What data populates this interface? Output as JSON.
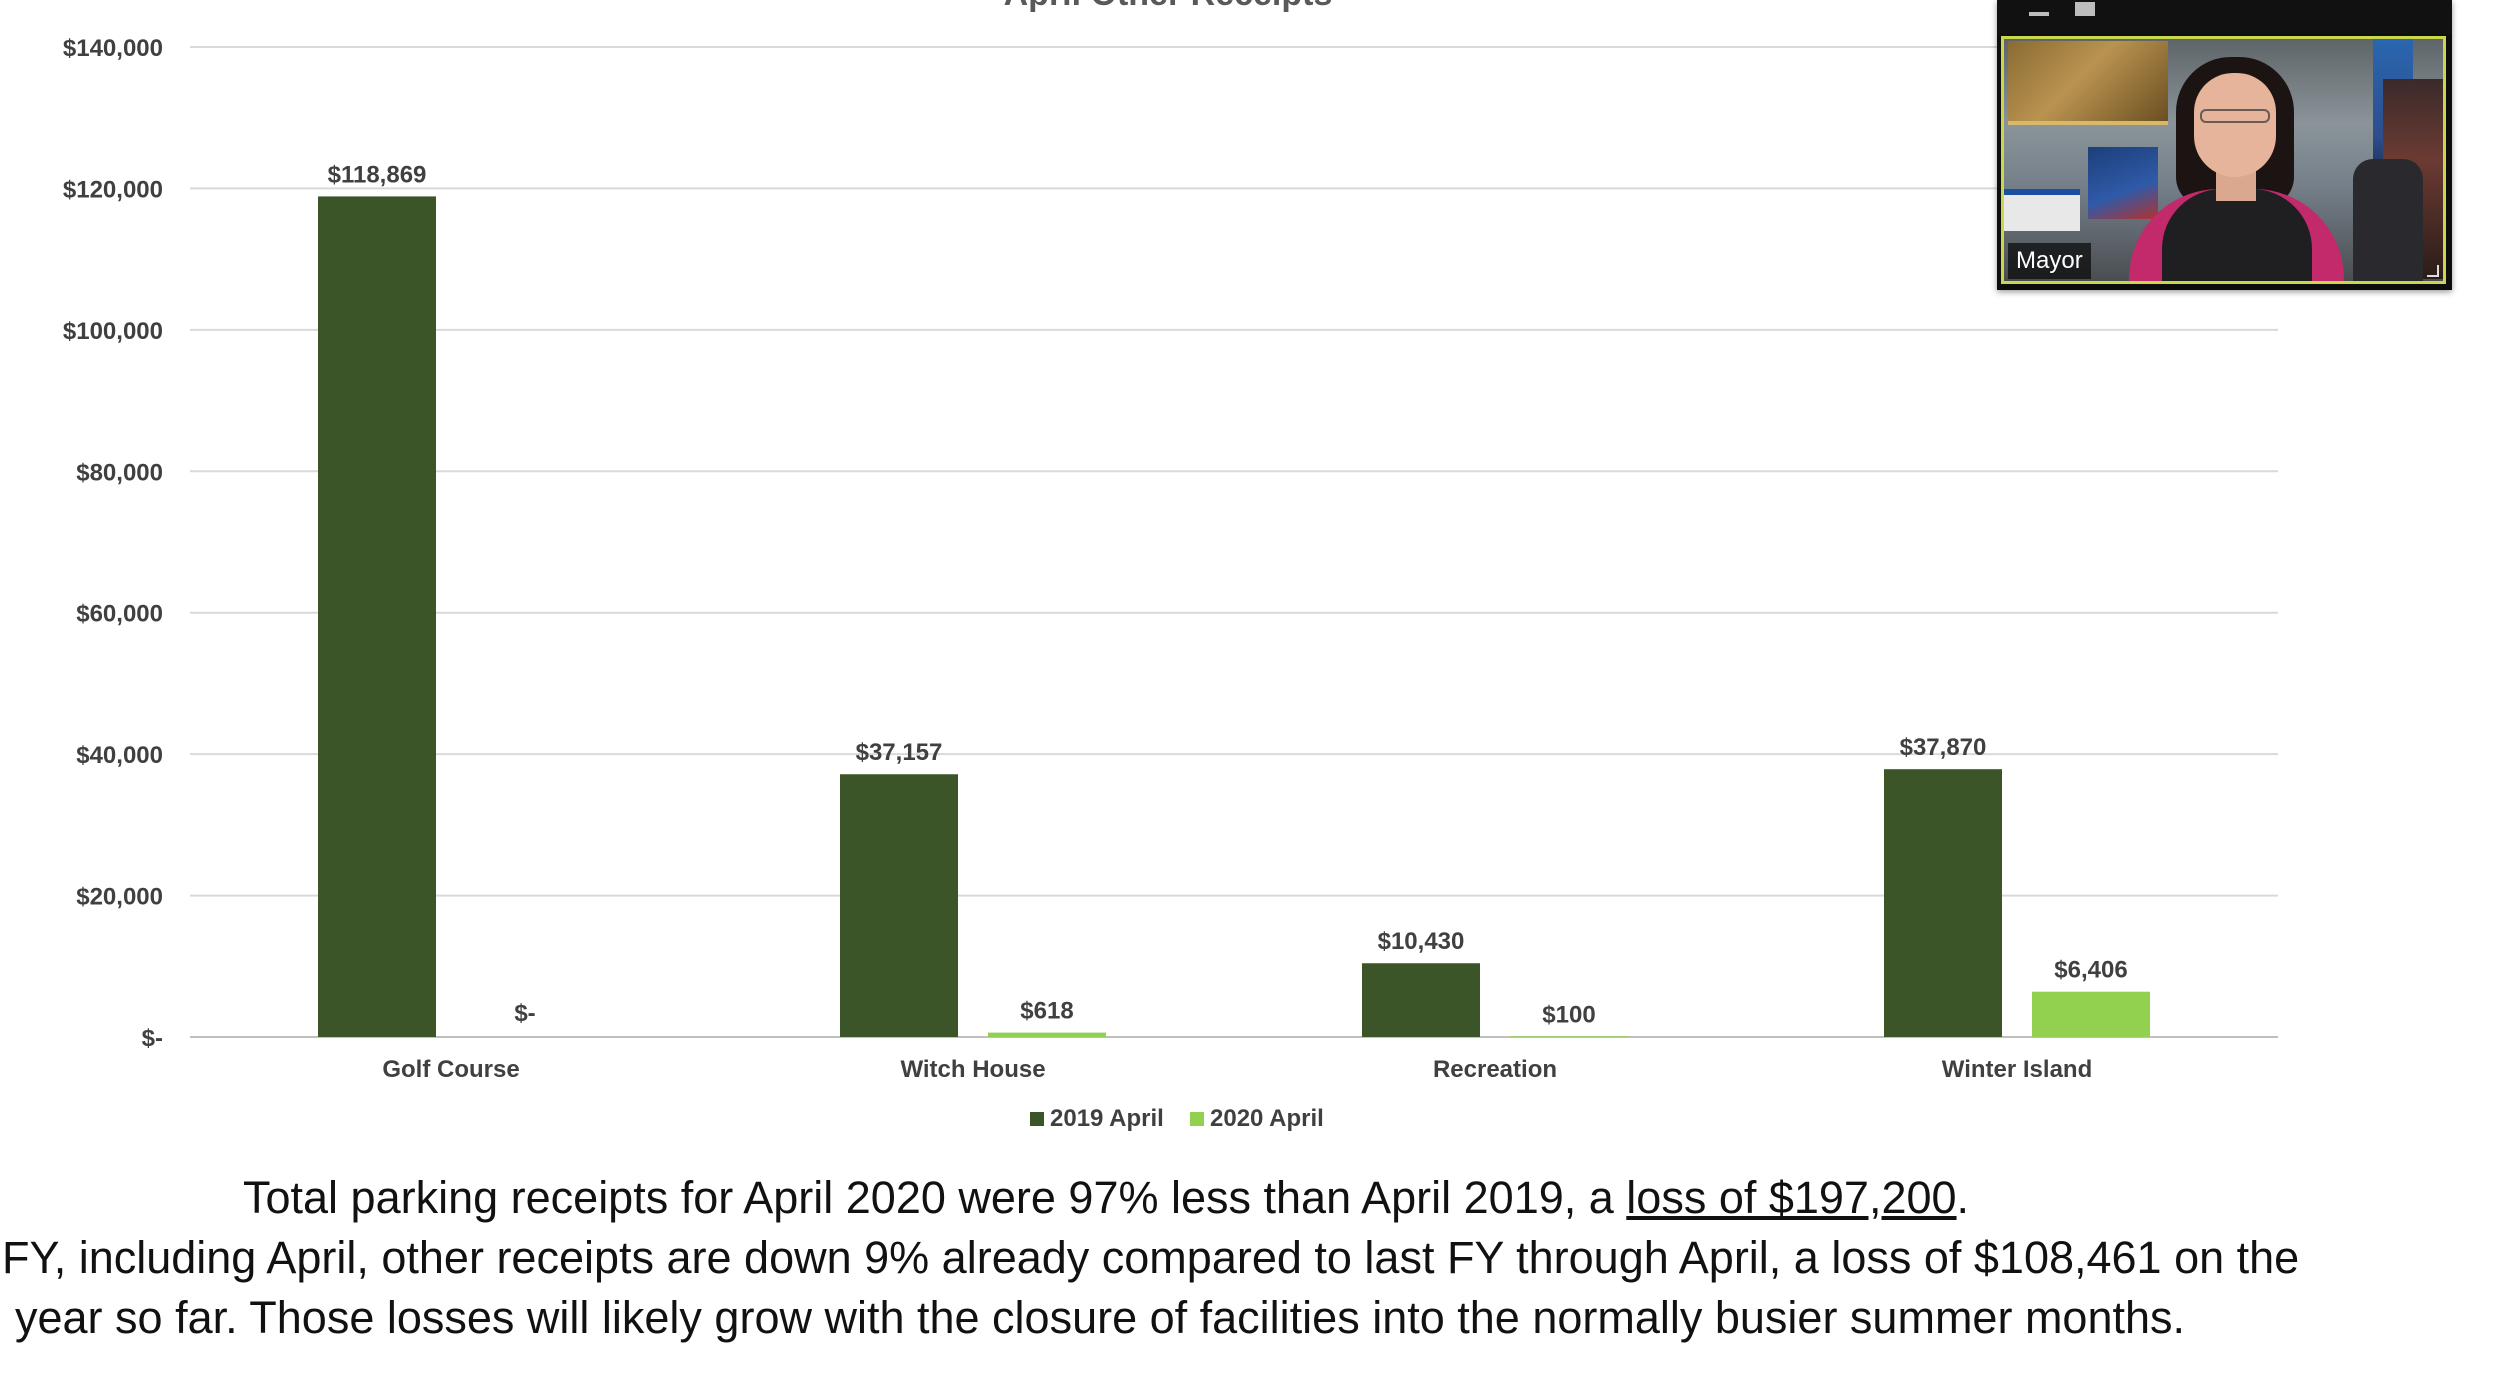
{
  "chart_data": {
    "type": "bar",
    "title": "April Other Receipts",
    "categories": [
      "Golf Course",
      "Witch House",
      "Recreation",
      "Winter Island"
    ],
    "series": [
      {
        "name": "2019 April",
        "color": "#3b5428",
        "values": [
          118869,
          37157,
          10430,
          37870
        ],
        "labels": [
          "$118,869",
          "$37,157",
          "$10,430",
          "$37,870"
        ]
      },
      {
        "name": "2020 April",
        "color": "#92d050",
        "values": [
          0,
          618,
          100,
          6406
        ],
        "labels": [
          "$-",
          "$618",
          "$100",
          "$6,406"
        ]
      }
    ],
    "ylim": [
      0,
      140000
    ],
    "yticks": [
      0,
      20000,
      40000,
      60000,
      80000,
      100000,
      120000,
      140000
    ],
    "ytick_labels": [
      "$-",
      "$20,000",
      "$40,000",
      "$60,000",
      "$80,000",
      "$100,000",
      "$120,000",
      "$140,000"
    ],
    "grid": true,
    "legend_position": "bottom"
  },
  "video": {
    "participant_name": "Mayor",
    "controls": [
      "minimize-icon",
      "restore-icon"
    ]
  },
  "caption": {
    "line1_prefix": "Total parking receipts for April 2020 were 97% less than April 2019, a ",
    "line1_link": "loss of $197,200",
    "line1_suffix": ".",
    "line2": "FY, including April, other receipts are down 9% already compared to last FY through April, a loss of $108,461 on the",
    "line3": "year so far. Those losses will likely grow with the closure of facilities into the normally busier summer months."
  }
}
